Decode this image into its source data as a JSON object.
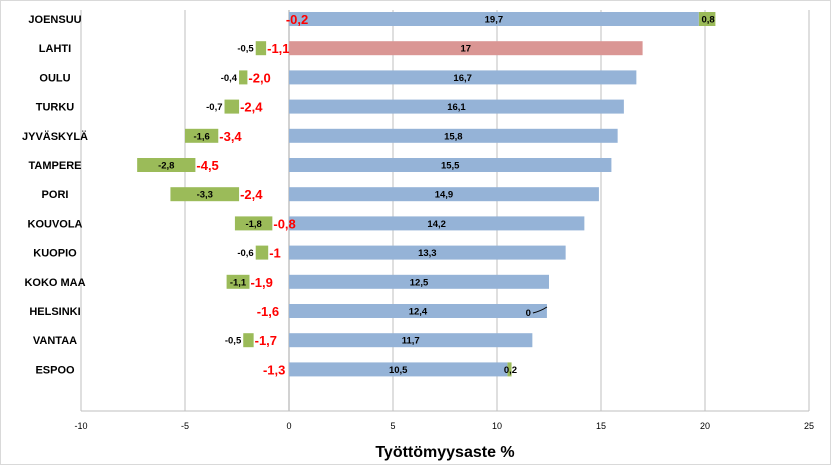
{
  "chart_data": {
    "type": "bar",
    "orientation": "horizontal",
    "xlabel": "Työttömyysaste %",
    "xlim": [
      -10,
      25
    ],
    "xticks": [
      -10,
      -5,
      0,
      5,
      10,
      15,
      20,
      25
    ],
    "grid": true,
    "categories": [
      "JOENSUU",
      "LAHTI",
      "OULU",
      "TURKU",
      "JYVÄSKYLÄ",
      "TAMPERE",
      "PORI",
      "KOUVOLA",
      "KUOPIO",
      "KOKO MAA",
      "HELSINKI",
      "VANTAA",
      "ESPOO"
    ],
    "rate": [
      "19,7",
      "17",
      "16,7",
      "16,1",
      "15,8",
      "15,5",
      "14,9",
      "14,2",
      "13,3",
      "12,5",
      "12,4",
      "11,7",
      "10,5"
    ],
    "rate_values": [
      19.7,
      17,
      16.7,
      16.1,
      15.8,
      15.5,
      14.9,
      14.2,
      13.3,
      12.5,
      12.4,
      11.7,
      10.5
    ],
    "highlight_index": 1,
    "highlight_color": "#da9694",
    "rate_color": "#95b3d7",
    "green_labels": [
      "0,8",
      "-0,5",
      "-0,4",
      "-0,7",
      "-1,6",
      "-2,8",
      "-3,3",
      "-1,8",
      "-0,6",
      "-1,1",
      "0",
      "-0,5",
      "0,2"
    ],
    "green_values": [
      0.8,
      -0.5,
      -0.4,
      -0.7,
      -1.6,
      -2.8,
      -3.3,
      -1.8,
      -0.6,
      -1.1,
      0,
      -0.5,
      0.2
    ],
    "green_color": "#9bbb59",
    "change_labels": [
      "-0,2",
      "-1,1",
      "-2,0",
      "-2,4",
      "-3,4",
      "-4,5",
      "-2,4",
      "-0,8",
      "-1",
      "-1,9",
      "-1,6",
      "-1,7",
      "-1,3"
    ],
    "change_values": [
      -0.2,
      -1.1,
      -2.0,
      -2.4,
      -3.4,
      -4.5,
      -2.4,
      -0.8,
      -1,
      -1.9,
      -1.6,
      -1.7,
      -1.3
    ],
    "change_color": "#ff0000"
  }
}
